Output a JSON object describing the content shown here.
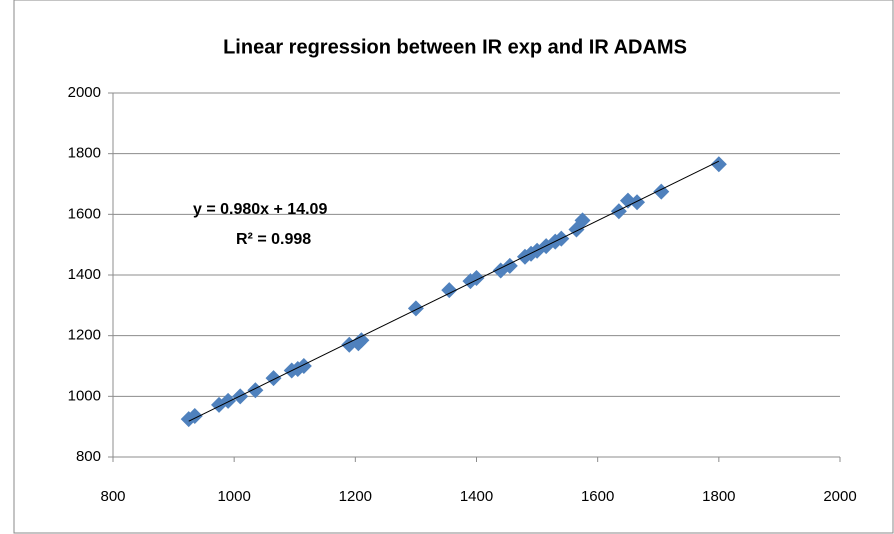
{
  "chart_data": {
    "type": "scatter",
    "title": "Linear regression between IR exp and IR ADAMS",
    "annotations": [
      "y = 0.980x  + 14.09",
      "R² = 0.998"
    ],
    "series": [
      {
        "name": "IR ADAMS",
        "color": "#4f81bd",
        "x": [
          925,
          935,
          975,
          990,
          1010,
          1035,
          1065,
          1095,
          1105,
          1115,
          1190,
          1205,
          1210,
          1300,
          1355,
          1390,
          1400,
          1440,
          1455,
          1480,
          1490,
          1500,
          1515,
          1530,
          1540,
          1565,
          1575,
          1635,
          1650,
          1665,
          1705,
          1800
        ],
        "values": [
          925,
          935,
          972,
          985,
          1000,
          1020,
          1060,
          1085,
          1090,
          1100,
          1170,
          1175,
          1185,
          1290,
          1350,
          1380,
          1390,
          1415,
          1430,
          1460,
          1470,
          1480,
          1495,
          1510,
          1520,
          1550,
          1580,
          1610,
          1645,
          1640,
          1675,
          1765
        ]
      }
    ],
    "trendline": true,
    "xlim": [
      800,
      2000
    ],
    "xticks": [
      800,
      1000,
      1200,
      1400,
      1600,
      1800,
      2000
    ],
    "ylim": [
      800,
      2000
    ],
    "yticks": [
      800,
      1000,
      1200,
      1400,
      1600,
      1800,
      2000
    ],
    "grid": true
  }
}
